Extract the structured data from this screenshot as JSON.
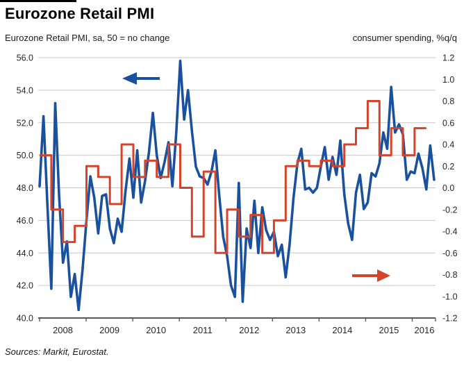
{
  "header": {
    "title": "Eurozone Retail PMI",
    "subtitle_left": "Eurozone Retail PMI, sa, 50 = no change",
    "subtitle_right": "consumer spending, %q/q"
  },
  "footer": {
    "source": "Sources: Markit, Eurostat."
  },
  "colors": {
    "pmi_line": "#1a519f",
    "spending_line": "#d4432a",
    "gridline": "#c7c7c7",
    "axis": "#595959",
    "tick_text": "#262626"
  },
  "chart_data": {
    "type": "line",
    "title": "Eurozone Retail PMI",
    "grid": "horizontal",
    "x_tick_labels": [
      "2008",
      "2009",
      "2010",
      "2011",
      "2012",
      "2013",
      "2014",
      "2015",
      "2016"
    ],
    "left_axis": {
      "label": "Eurozone Retail PMI, sa, 50 = no change",
      "min": 40,
      "max": 56,
      "tick_step": 2,
      "tick_labels": [
        "56.0",
        "54.0",
        "52.0",
        "50.0",
        "48.0",
        "46.0",
        "44.0",
        "42.0",
        "40.0"
      ]
    },
    "right_axis": {
      "label": "consumer spending, %q/q",
      "min": -1.2,
      "max": 1.2,
      "tick_step": 0.2,
      "tick_labels": [
        "1.2",
        "1.0",
        "0.8",
        "0.6",
        "0.4",
        "0.2",
        "0.0",
        "-0.2",
        "-0.4",
        "-0.6",
        "-0.8",
        "-1.0",
        "-1.2"
      ]
    },
    "series": [
      {
        "name": "Eurozone Retail PMI (sa, 50 = no change)",
        "axis": "left",
        "style": "line",
        "frequency": "monthly",
        "start": "2008-01",
        "end": "2016-06",
        "color": "#1a519f",
        "values": [
          48.1,
          52.4,
          47.0,
          41.8,
          53.2,
          47.5,
          43.4,
          44.7,
          41.3,
          42.7,
          40.5,
          43.0,
          46.0,
          48.7,
          47.4,
          45.2,
          47.5,
          47.6,
          45.5,
          44.6,
          46.1,
          45.3,
          47.8,
          49.8,
          47.4,
          50.3,
          47.1,
          48.4,
          50.2,
          52.6,
          50.0,
          48.6,
          49.6,
          50.8,
          48.1,
          51.4,
          55.8,
          52.2,
          54.0,
          51.5,
          49.3,
          48.7,
          48.6,
          48.2,
          49.0,
          50.3,
          47.5,
          45.0,
          43.8,
          42.0,
          41.3,
          48.3,
          41.0,
          45.5,
          44.3,
          47.2,
          44.0,
          46.8,
          45.4,
          44.8,
          45.3,
          43.8,
          44.5,
          42.5,
          44.5,
          47.4,
          49.5,
          50.4,
          47.9,
          48.0,
          47.7,
          48.0,
          49.3,
          50.5,
          48.5,
          49.9,
          48.8,
          50.9,
          47.6,
          45.8,
          44.8,
          47.7,
          48.8,
          46.7,
          47.1,
          48.9,
          48.7,
          49.5,
          51.4,
          50.4,
          54.2,
          51.4,
          51.9,
          51.3,
          48.5,
          49.0,
          48.9,
          50.1,
          49.2,
          47.9,
          50.6,
          48.5
        ]
      },
      {
        "name": "consumer spending, %q/q",
        "axis": "right",
        "style": "step",
        "frequency": "quarterly",
        "start": "2008-Q1",
        "end": "2016-Q1",
        "color": "#d4432a",
        "values": [
          0.3,
          -0.2,
          -0.5,
          -0.35,
          0.2,
          0.1,
          -0.15,
          0.4,
          0.1,
          0.25,
          0.1,
          0.4,
          0.0,
          -0.45,
          0.15,
          -0.6,
          -0.2,
          -0.45,
          -0.25,
          -0.6,
          -0.3,
          0.2,
          0.25,
          0.2,
          0.25,
          0.2,
          0.4,
          0.55,
          0.8,
          0.3,
          0.55,
          0.3,
          0.55
        ]
      }
    ],
    "annotations": [
      {
        "type": "arrow",
        "direction": "left",
        "color": "#1a519f",
        "refers_to": "Eurozone Retail PMI (left axis)"
      },
      {
        "type": "arrow",
        "direction": "right",
        "color": "#d4432a",
        "refers_to": "consumer spending (right axis)"
      }
    ]
  }
}
